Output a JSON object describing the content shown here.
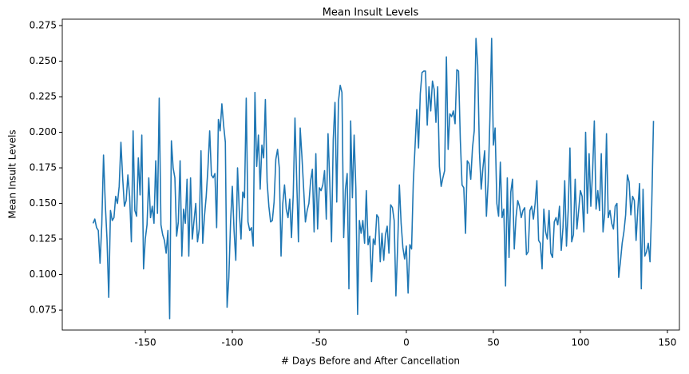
{
  "chart_data": {
    "type": "line",
    "title": "Mean Insult Levels",
    "xlabel": "# Days Before and After Cancellation",
    "ylabel": "Mean Insult Levels",
    "color": "#1f77b4",
    "x": [
      -180,
      -179,
      -178,
      -177,
      -176,
      -175,
      -174,
      -173,
      -172,
      -171,
      -170,
      -169,
      -168,
      -167,
      -166,
      -165,
      -164,
      -163,
      -162,
      -161,
      -160,
      -159,
      -158,
      -157,
      -156,
      -155,
      -154,
      -153,
      -152,
      -151,
      -150,
      -149,
      -148,
      -147,
      -146,
      -145,
      -144,
      -143,
      -142,
      -141,
      -140,
      -139,
      -138,
      -137,
      -136,
      -135,
      -134,
      -133,
      -132,
      -131,
      -130,
      -129,
      -128,
      -127,
      -126,
      -125,
      -124,
      -123,
      -122,
      -121,
      -120,
      -119,
      -118,
      -117,
      -116,
      -115,
      -114,
      -113,
      -112,
      -111,
      -110,
      -109,
      -108,
      -107,
      -106,
      -105,
      -104,
      -103,
      -102,
      -101,
      -100,
      -99,
      -98,
      -97,
      -96,
      -95,
      -94,
      -93,
      -92,
      -91,
      -90,
      -89,
      -88,
      -87,
      -86,
      -85,
      -84,
      -83,
      -82,
      -81,
      -80,
      -79,
      -78,
      -77,
      -76,
      -75,
      -74,
      -73,
      -72,
      -71,
      -70,
      -69,
      -68,
      -67,
      -66,
      -65,
      -64,
      -63,
      -62,
      -61,
      -60,
      -59,
      -58,
      -57,
      -56,
      -55,
      -54,
      -53,
      -52,
      -51,
      -50,
      -49,
      -48,
      -47,
      -46,
      -45,
      -44,
      -43,
      -42,
      -41,
      -40,
      -39,
      -38,
      -37,
      -36,
      -35,
      -34,
      -33,
      -32,
      -31,
      -30,
      -29,
      -28,
      -27,
      -26,
      -25,
      -24,
      -23,
      -22,
      -21,
      -20,
      -19,
      -18,
      -17,
      -16,
      -15,
      -14,
      -13,
      -12,
      -11,
      -10,
      -9,
      -8,
      -7,
      -6,
      -5,
      -4,
      -3,
      -2,
      -1,
      0,
      1,
      2,
      3,
      4,
      5,
      6,
      7,
      8,
      9,
      10,
      11,
      12,
      13,
      14,
      15,
      16,
      17,
      18,
      19,
      20,
      21,
      22,
      23,
      24,
      25,
      26,
      27,
      28,
      29,
      30,
      31,
      32,
      33,
      34,
      35,
      36,
      37,
      38,
      39,
      40,
      41,
      42,
      43,
      44,
      45,
      46,
      47,
      48,
      49,
      50,
      51,
      52,
      53,
      54,
      55,
      56,
      57,
      58,
      59,
      60,
      61,
      62,
      63,
      64,
      65,
      66,
      67,
      68,
      69,
      70,
      71,
      72,
      73,
      74,
      75,
      76,
      77,
      78,
      79,
      80,
      81,
      82,
      83,
      84,
      85,
      86,
      87,
      88,
      89,
      90,
      91,
      92,
      93,
      94,
      95,
      96,
      97,
      98,
      99,
      100,
      101,
      102,
      103,
      104,
      105,
      106,
      107,
      108,
      109,
      110,
      111,
      112,
      113,
      114,
      115,
      116,
      117,
      118,
      119,
      120,
      121,
      122,
      123,
      124,
      125,
      126,
      127,
      128,
      129,
      130,
      131,
      132,
      133,
      134,
      135,
      136,
      137,
      138,
      139,
      140,
      141,
      142
    ],
    "values": [
      0.136,
      0.139,
      0.133,
      0.131,
      0.108,
      0.135,
      0.184,
      0.15,
      0.125,
      0.084,
      0.145,
      0.138,
      0.14,
      0.155,
      0.15,
      0.162,
      0.193,
      0.168,
      0.148,
      0.152,
      0.17,
      0.155,
      0.123,
      0.201,
      0.145,
      0.141,
      0.182,
      0.156,
      0.198,
      0.104,
      0.125,
      0.135,
      0.168,
      0.14,
      0.148,
      0.136,
      0.18,
      0.143,
      0.224,
      0.135,
      0.128,
      0.124,
      0.115,
      0.131,
      0.069,
      0.194,
      0.175,
      0.168,
      0.127,
      0.137,
      0.18,
      0.113,
      0.146,
      0.136,
      0.167,
      0.113,
      0.168,
      0.125,
      0.138,
      0.15,
      0.123,
      0.132,
      0.187,
      0.122,
      0.141,
      0.155,
      0.175,
      0.201,
      0.17,
      0.168,
      0.171,
      0.133,
      0.209,
      0.201,
      0.22,
      0.205,
      0.193,
      0.077,
      0.098,
      0.137,
      0.162,
      0.131,
      0.11,
      0.175,
      0.145,
      0.125,
      0.158,
      0.154,
      0.224,
      0.137,
      0.131,
      0.133,
      0.12,
      0.228,
      0.176,
      0.198,
      0.16,
      0.191,
      0.182,
      0.223,
      0.165,
      0.148,
      0.137,
      0.138,
      0.151,
      0.181,
      0.188,
      0.175,
      0.113,
      0.15,
      0.163,
      0.146,
      0.14,
      0.153,
      0.126,
      0.156,
      0.21,
      0.166,
      0.123,
      0.203,
      0.183,
      0.16,
      0.137,
      0.145,
      0.15,
      0.166,
      0.174,
      0.13,
      0.185,
      0.132,
      0.161,
      0.159,
      0.163,
      0.173,
      0.139,
      0.199,
      0.165,
      0.123,
      0.195,
      0.221,
      0.151,
      0.222,
      0.233,
      0.228,
      0.126,
      0.16,
      0.171,
      0.09,
      0.208,
      0.154,
      0.198,
      0.16,
      0.072,
      0.138,
      0.129,
      0.138,
      0.122,
      0.159,
      0.121,
      0.127,
      0.095,
      0.125,
      0.121,
      0.142,
      0.14,
      0.109,
      0.129,
      0.11,
      0.128,
      0.134,
      0.115,
      0.149,
      0.147,
      0.138,
      0.085,
      0.12,
      0.163,
      0.136,
      0.119,
      0.111,
      0.12,
      0.087,
      0.121,
      0.118,
      0.165,
      0.19,
      0.216,
      0.189,
      0.227,
      0.242,
      0.243,
      0.243,
      0.205,
      0.232,
      0.215,
      0.236,
      0.23,
      0.207,
      0.232,
      0.176,
      0.162,
      0.168,
      0.173,
      0.253,
      0.188,
      0.213,
      0.211,
      0.215,
      0.206,
      0.244,
      0.243,
      0.195,
      0.163,
      0.161,
      0.129,
      0.18,
      0.178,
      0.167,
      0.189,
      0.201,
      0.266,
      0.247,
      0.186,
      0.16,
      0.175,
      0.187,
      0.141,
      0.165,
      0.209,
      0.266,
      0.191,
      0.203,
      0.15,
      0.141,
      0.179,
      0.14,
      0.146,
      0.092,
      0.168,
      0.112,
      0.158,
      0.167,
      0.118,
      0.14,
      0.152,
      0.148,
      0.14,
      0.145,
      0.147,
      0.114,
      0.116,
      0.145,
      0.148,
      0.139,
      0.15,
      0.166,
      0.124,
      0.122,
      0.104,
      0.146,
      0.13,
      0.125,
      0.145,
      0.115,
      0.112,
      0.137,
      0.14,
      0.135,
      0.148,
      0.117,
      0.133,
      0.166,
      0.12,
      0.145,
      0.189,
      0.123,
      0.128,
      0.167,
      0.132,
      0.145,
      0.159,
      0.155,
      0.13,
      0.2,
      0.143,
      0.185,
      0.148,
      0.172,
      0.208,
      0.146,
      0.159,
      0.145,
      0.185,
      0.13,
      0.143,
      0.199,
      0.14,
      0.145,
      0.136,
      0.132,
      0.148,
      0.15,
      0.098,
      0.109,
      0.122,
      0.13,
      0.142,
      0.17,
      0.165,
      0.142,
      0.155,
      0.152,
      0.124,
      0.146,
      0.164,
      0.09,
      0.16,
      0.113,
      0.116,
      0.122,
      0.109,
      0.149,
      0.208
    ],
    "xlim": [
      -197.7,
      156.9
    ],
    "xticks": [
      -150,
      -100,
      -50,
      0,
      50,
      100,
      150
    ],
    "ylim": [
      0.061,
      0.2795
    ],
    "yticks": [
      0.075,
      {
        "value": 0.1,
        "label": "0.100"
      },
      0.125,
      {
        "value": 0.15,
        "label": "0.150"
      },
      0.175,
      {
        "value": 0.2,
        "label": "0.200"
      },
      0.225,
      {
        "value": 0.25,
        "label": "0.250"
      },
      0.275
    ]
  }
}
